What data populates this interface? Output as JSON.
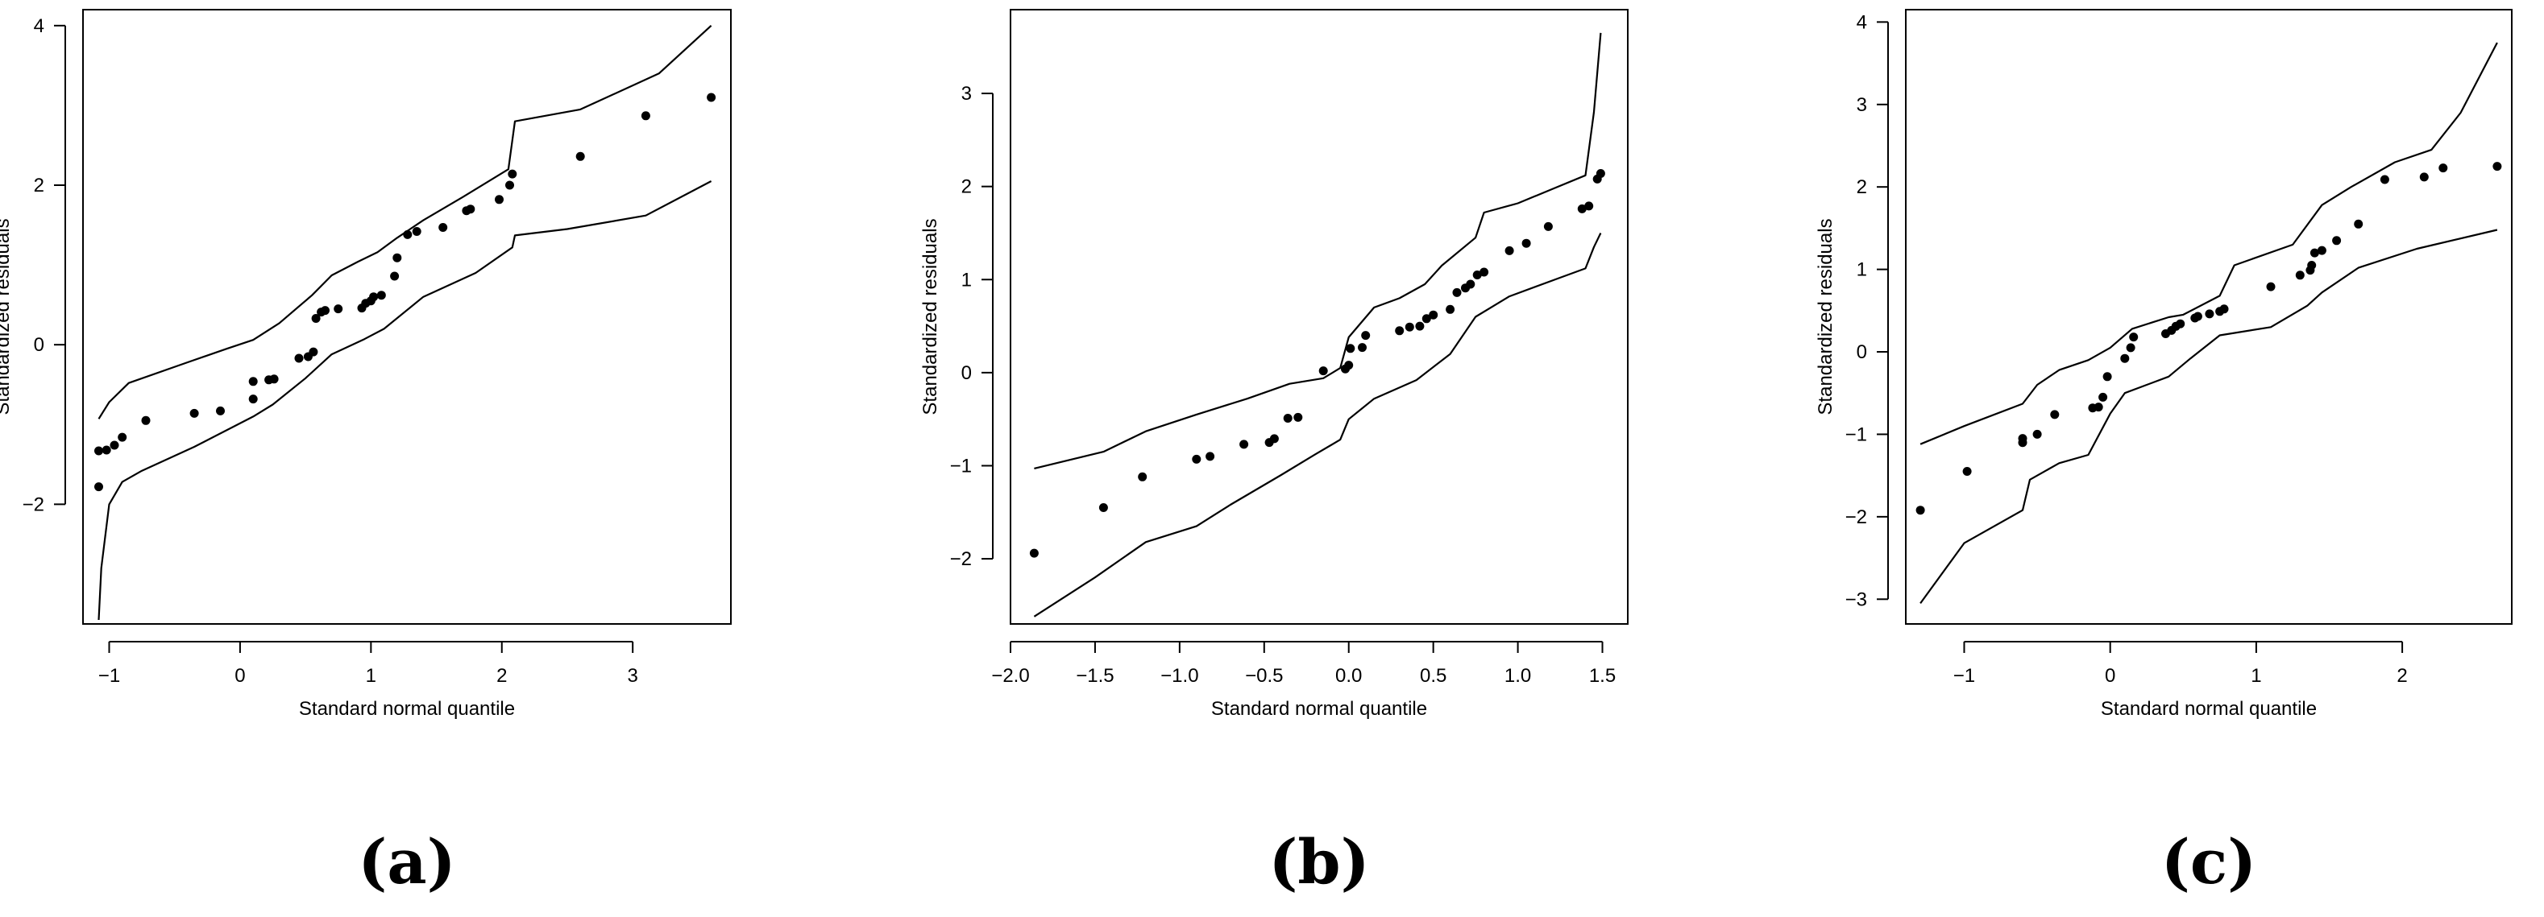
{
  "chart_data": [
    {
      "type": "scatter",
      "panel_label": "(a)",
      "xlabel": "Standard normal quantile",
      "ylabel": "Standardized residuals",
      "xlim": [
        -1.2,
        3.75
      ],
      "ylim": [
        -3.5,
        4.2
      ],
      "x_ticks": [
        -1,
        0,
        1,
        2,
        3
      ],
      "y_ticks": [
        -2,
        0,
        2,
        4
      ],
      "grid": false,
      "points": [
        [
          -1.08,
          -1.78
        ],
        [
          -1.08,
          -1.33
        ],
        [
          -1.02,
          -1.32
        ],
        [
          -0.96,
          -1.26
        ],
        [
          -0.9,
          -1.16
        ],
        [
          -0.72,
          -0.95
        ],
        [
          -0.35,
          -0.86
        ],
        [
          -0.15,
          -0.83
        ],
        [
          0.1,
          -0.68
        ],
        [
          0.1,
          -0.46
        ],
        [
          0.22,
          -0.44
        ],
        [
          0.26,
          -0.43
        ],
        [
          0.45,
          -0.17
        ],
        [
          0.52,
          -0.15
        ],
        [
          0.56,
          -0.09
        ],
        [
          0.58,
          0.33
        ],
        [
          0.62,
          0.41
        ],
        [
          0.65,
          0.43
        ],
        [
          0.75,
          0.45
        ],
        [
          0.93,
          0.46
        ],
        [
          0.96,
          0.52
        ],
        [
          1.0,
          0.55
        ],
        [
          1.02,
          0.6
        ],
        [
          1.08,
          0.62
        ],
        [
          1.18,
          0.86
        ],
        [
          1.2,
          1.09
        ],
        [
          1.28,
          1.38
        ],
        [
          1.35,
          1.42
        ],
        [
          1.55,
          1.47
        ],
        [
          1.73,
          1.68
        ],
        [
          1.76,
          1.7
        ],
        [
          1.98,
          1.82
        ],
        [
          2.06,
          2.0
        ],
        [
          2.08,
          2.14
        ],
        [
          2.6,
          2.36
        ],
        [
          3.1,
          2.87
        ],
        [
          3.6,
          3.1
        ]
      ],
      "upper_envelope": [
        [
          -1.08,
          -0.93
        ],
        [
          -1.0,
          -0.72
        ],
        [
          -0.85,
          -0.48
        ],
        [
          -0.4,
          -0.22
        ],
        [
          -0.1,
          -0.05
        ],
        [
          0.1,
          0.06
        ],
        [
          0.3,
          0.27
        ],
        [
          0.55,
          0.62
        ],
        [
          0.7,
          0.87
        ],
        [
          0.9,
          1.04
        ],
        [
          1.05,
          1.16
        ],
        [
          1.2,
          1.34
        ],
        [
          1.4,
          1.56
        ],
        [
          1.7,
          1.85
        ],
        [
          2.05,
          2.2
        ],
        [
          2.1,
          2.8
        ],
        [
          2.6,
          2.95
        ],
        [
          3.2,
          3.4
        ],
        [
          3.6,
          4.0
        ]
      ],
      "lower_envelope": [
        [
          -1.08,
          -3.45
        ],
        [
          -1.06,
          -2.8
        ],
        [
          -1.0,
          -2.0
        ],
        [
          -0.9,
          -1.72
        ],
        [
          -0.75,
          -1.58
        ],
        [
          -0.35,
          -1.28
        ],
        [
          0.1,
          -0.9
        ],
        [
          0.25,
          -0.75
        ],
        [
          0.5,
          -0.42
        ],
        [
          0.7,
          -0.12
        ],
        [
          0.95,
          0.07
        ],
        [
          1.1,
          0.2
        ],
        [
          1.4,
          0.6
        ],
        [
          1.8,
          0.9
        ],
        [
          2.08,
          1.22
        ],
        [
          2.1,
          1.37
        ],
        [
          2.5,
          1.45
        ],
        [
          3.1,
          1.62
        ],
        [
          3.6,
          2.05
        ]
      ]
    },
    {
      "type": "scatter",
      "panel_label": "(b)",
      "xlabel": "Standard normal quantile",
      "ylabel": "Standardized residuals",
      "xlim": [
        -2.0,
        1.65
      ],
      "ylim": [
        -2.7,
        3.9
      ],
      "x_ticks": [
        -2.0,
        -1.5,
        -1.0,
        -0.5,
        0.0,
        0.5,
        1.0,
        1.5
      ],
      "x_tick_labels": [
        "−2.0",
        "−1.5",
        "−1.0",
        "−0.5",
        "0.0",
        "0.5",
        "1.0",
        "1.5"
      ],
      "y_ticks": [
        -2,
        -1,
        0,
        1,
        2,
        3
      ],
      "grid": false,
      "points": [
        [
          -1.86,
          -1.94
        ],
        [
          -1.45,
          -1.45
        ],
        [
          -1.22,
          -1.12
        ],
        [
          -0.9,
          -0.93
        ],
        [
          -0.82,
          -0.9
        ],
        [
          -0.62,
          -0.77
        ],
        [
          -0.47,
          -0.75
        ],
        [
          -0.44,
          -0.71
        ],
        [
          -0.36,
          -0.49
        ],
        [
          -0.3,
          -0.48
        ],
        [
          -0.15,
          0.02
        ],
        [
          -0.02,
          0.04
        ],
        [
          0.0,
          0.08
        ],
        [
          0.01,
          0.26
        ],
        [
          0.08,
          0.27
        ],
        [
          0.1,
          0.4
        ],
        [
          0.3,
          0.45
        ],
        [
          0.36,
          0.49
        ],
        [
          0.42,
          0.5
        ],
        [
          0.46,
          0.58
        ],
        [
          0.5,
          0.62
        ],
        [
          0.6,
          0.68
        ],
        [
          0.64,
          0.86
        ],
        [
          0.69,
          0.91
        ],
        [
          0.72,
          0.95
        ],
        [
          0.76,
          1.05
        ],
        [
          0.8,
          1.08
        ],
        [
          0.95,
          1.31
        ],
        [
          1.05,
          1.39
        ],
        [
          1.18,
          1.57
        ],
        [
          1.38,
          1.76
        ],
        [
          1.42,
          1.79
        ],
        [
          1.47,
          2.08
        ],
        [
          1.49,
          2.14
        ]
      ],
      "upper_envelope": [
        [
          -1.86,
          -1.03
        ],
        [
          -1.45,
          -0.85
        ],
        [
          -1.2,
          -0.63
        ],
        [
          -0.9,
          -0.45
        ],
        [
          -0.6,
          -0.28
        ],
        [
          -0.35,
          -0.12
        ],
        [
          -0.15,
          -0.06
        ],
        [
          -0.05,
          0.05
        ],
        [
          0.0,
          0.38
        ],
        [
          0.15,
          0.7
        ],
        [
          0.3,
          0.8
        ],
        [
          0.45,
          0.95
        ],
        [
          0.55,
          1.15
        ],
        [
          0.75,
          1.45
        ],
        [
          0.8,
          1.72
        ],
        [
          1.0,
          1.82
        ],
        [
          1.2,
          1.97
        ],
        [
          1.4,
          2.12
        ],
        [
          1.45,
          2.8
        ],
        [
          1.49,
          3.65
        ]
      ],
      "lower_envelope": [
        [
          -1.86,
          -2.62
        ],
        [
          -1.5,
          -2.2
        ],
        [
          -1.2,
          -1.82
        ],
        [
          -0.9,
          -1.65
        ],
        [
          -0.7,
          -1.42
        ],
        [
          -0.4,
          -1.1
        ],
        [
          -0.2,
          -0.88
        ],
        [
          -0.05,
          -0.72
        ],
        [
          0.0,
          -0.5
        ],
        [
          0.15,
          -0.28
        ],
        [
          0.4,
          -0.08
        ],
        [
          0.6,
          0.2
        ],
        [
          0.75,
          0.6
        ],
        [
          0.95,
          0.82
        ],
        [
          1.25,
          1.02
        ],
        [
          1.4,
          1.12
        ],
        [
          1.45,
          1.35
        ],
        [
          1.49,
          1.5
        ]
      ]
    },
    {
      "type": "scatter",
      "panel_label": "(c)",
      "xlabel": "Standard normal quantile",
      "ylabel": "Standardized residuals",
      "xlim": [
        -1.4,
        2.75
      ],
      "ylim": [
        -3.3,
        4.15
      ],
      "x_ticks": [
        -1,
        0,
        1,
        2
      ],
      "y_ticks": [
        -3,
        -2,
        -1,
        0,
        1,
        2,
        3,
        4
      ],
      "grid": false,
      "points": [
        [
          -1.3,
          -1.92
        ],
        [
          -0.98,
          -1.45
        ],
        [
          -0.6,
          -1.1
        ],
        [
          -0.6,
          -1.05
        ],
        [
          -0.5,
          -1.0
        ],
        [
          -0.38,
          -0.76
        ],
        [
          -0.12,
          -0.68
        ],
        [
          -0.08,
          -0.67
        ],
        [
          -0.05,
          -0.55
        ],
        [
          -0.02,
          -0.3
        ],
        [
          0.1,
          -0.08
        ],
        [
          0.14,
          0.05
        ],
        [
          0.16,
          0.18
        ],
        [
          0.38,
          0.22
        ],
        [
          0.42,
          0.26
        ],
        [
          0.45,
          0.31
        ],
        [
          0.48,
          0.34
        ],
        [
          0.58,
          0.41
        ],
        [
          0.6,
          0.43
        ],
        [
          0.68,
          0.46
        ],
        [
          0.75,
          0.49
        ],
        [
          0.78,
          0.52
        ],
        [
          1.1,
          0.79
        ],
        [
          1.3,
          0.93
        ],
        [
          1.37,
          0.99
        ],
        [
          1.38,
          1.05
        ],
        [
          1.4,
          1.2
        ],
        [
          1.45,
          1.23
        ],
        [
          1.55,
          1.35
        ],
        [
          1.7,
          1.55
        ],
        [
          1.88,
          2.09
        ],
        [
          2.15,
          2.12
        ],
        [
          2.28,
          2.23
        ],
        [
          2.65,
          2.25
        ]
      ],
      "upper_envelope": [
        [
          -1.3,
          -1.12
        ],
        [
          -1.0,
          -0.9
        ],
        [
          -0.6,
          -0.63
        ],
        [
          -0.5,
          -0.4
        ],
        [
          -0.35,
          -0.22
        ],
        [
          -0.15,
          -0.1
        ],
        [
          0.0,
          0.05
        ],
        [
          0.15,
          0.28
        ],
        [
          0.4,
          0.42
        ],
        [
          0.5,
          0.45
        ],
        [
          0.75,
          0.68
        ],
        [
          0.85,
          1.05
        ],
        [
          1.25,
          1.3
        ],
        [
          1.45,
          1.78
        ],
        [
          1.65,
          2.0
        ],
        [
          1.95,
          2.3
        ],
        [
          2.2,
          2.45
        ],
        [
          2.4,
          2.9
        ],
        [
          2.65,
          3.75
        ]
      ],
      "lower_envelope": [
        [
          -1.3,
          -3.05
        ],
        [
          -1.0,
          -2.32
        ],
        [
          -0.6,
          -1.92
        ],
        [
          -0.55,
          -1.55
        ],
        [
          -0.35,
          -1.35
        ],
        [
          -0.15,
          -1.25
        ],
        [
          0.0,
          -0.75
        ],
        [
          0.1,
          -0.5
        ],
        [
          0.4,
          -0.3
        ],
        [
          0.55,
          -0.08
        ],
        [
          0.75,
          0.2
        ],
        [
          1.1,
          0.3
        ],
        [
          1.35,
          0.56
        ],
        [
          1.45,
          0.72
        ],
        [
          1.7,
          1.02
        ],
        [
          2.1,
          1.25
        ],
        [
          2.65,
          1.48
        ]
      ]
    }
  ]
}
